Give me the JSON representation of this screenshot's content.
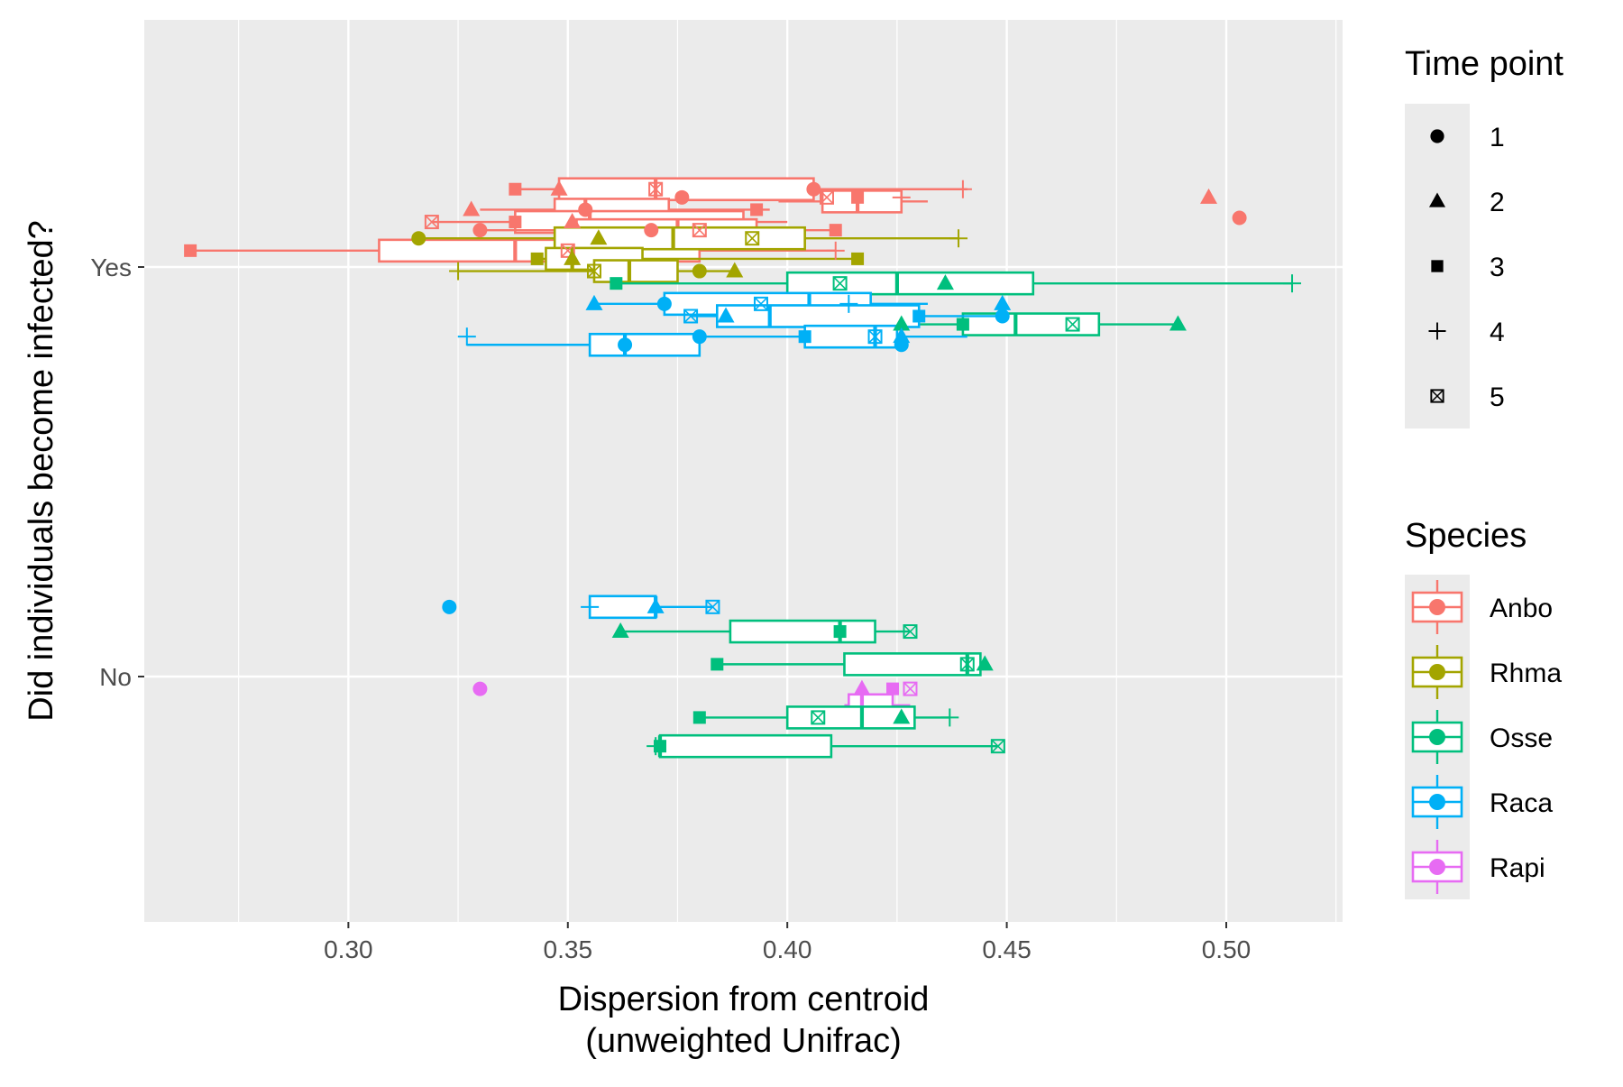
{
  "chart_data": {
    "type": "boxplot",
    "title": "",
    "xlabel": "Dispersion from centroid\n(unweighted Unifrac)",
    "ylabel": "Did individuals become infected?",
    "xlim": [
      0.2535,
      0.5265
    ],
    "x_ticks": [
      "0.30",
      "0.35",
      "0.40",
      "0.45",
      "0.50"
    ],
    "categories": [
      "No",
      "Yes"
    ],
    "grid": true,
    "legend": {
      "position": "right"
    },
    "legend_shape_title": "Time point",
    "legend_color_title": "Species",
    "time_points": [
      {
        "label": "1",
        "shape": "circle"
      },
      {
        "label": "2",
        "shape": "triangle"
      },
      {
        "label": "3",
        "shape": "square"
      },
      {
        "label": "4",
        "shape": "plus"
      },
      {
        "label": "5",
        "shape": "boxx"
      }
    ],
    "species": [
      {
        "label": "Anbo",
        "color": "#F8766D"
      },
      {
        "label": "Rhma",
        "color": "#A3A500"
      },
      {
        "label": "Osse",
        "color": "#00BF7D"
      },
      {
        "label": "Raca",
        "color": "#00B0F6"
      },
      {
        "label": "Rapi",
        "color": "#E76BF3"
      }
    ],
    "boxes": [
      {
        "species": "Anbo",
        "infected": "Yes",
        "offset": 0.19,
        "whisker_low": 0.337,
        "q1": 0.348,
        "median": 0.37,
        "q3": 0.406,
        "whisker_high": 0.441
      },
      {
        "species": "Anbo",
        "infected": "Yes",
        "offset": 0.16,
        "whisker_low": 0.398,
        "q1": 0.408,
        "median": 0.416,
        "q3": 0.426,
        "whisker_high": 0.432
      },
      {
        "species": "Anbo",
        "infected": "Yes",
        "offset": 0.14,
        "whisker_low": 0.33,
        "q1": 0.347,
        "median": 0.354,
        "q3": 0.373,
        "whisker_high": 0.396
      },
      {
        "species": "Anbo",
        "infected": "Yes",
        "offset": 0.11,
        "whisker_low": 0.319,
        "q1": 0.338,
        "median": 0.355,
        "q3": 0.39,
        "whisker_high": 0.4
      },
      {
        "species": "Anbo",
        "infected": "Yes",
        "offset": 0.09,
        "whisker_low": 0.33,
        "q1": 0.352,
        "median": 0.375,
        "q3": 0.393,
        "whisker_high": 0.411
      },
      {
        "species": "Anbo",
        "infected": "Yes",
        "offset": 0.04,
        "whisker_low": 0.264,
        "q1": 0.307,
        "median": 0.338,
        "q3": 0.38,
        "whisker_high": 0.411
      },
      {
        "species": "Rhma",
        "infected": "Yes",
        "offset": 0.07,
        "whisker_low": 0.316,
        "q1": 0.347,
        "median": 0.374,
        "q3": 0.404,
        "whisker_high": 0.439
      },
      {
        "species": "Rhma",
        "infected": "Yes",
        "offset": 0.02,
        "whisker_low": 0.343,
        "q1": 0.345,
        "median": 0.351,
        "q3": 0.367,
        "whisker_high": 0.416
      },
      {
        "species": "Rhma",
        "infected": "Yes",
        "offset": -0.01,
        "whisker_low": 0.325,
        "q1": 0.356,
        "median": 0.364,
        "q3": 0.375,
        "whisker_high": 0.388
      },
      {
        "species": "Osse",
        "infected": "Yes",
        "offset": -0.04,
        "whisker_low": 0.361,
        "q1": 0.4,
        "median": 0.425,
        "q3": 0.456,
        "whisker_high": 0.515
      },
      {
        "species": "Osse",
        "infected": "Yes",
        "offset": -0.14,
        "whisker_low": 0.426,
        "q1": 0.44,
        "median": 0.452,
        "q3": 0.471,
        "whisker_high": 0.489
      },
      {
        "species": "Raca",
        "infected": "Yes",
        "offset": -0.09,
        "whisker_low": 0.355,
        "q1": 0.372,
        "median": 0.405,
        "q3": 0.419,
        "whisker_high": 0.432
      },
      {
        "species": "Raca",
        "infected": "Yes",
        "offset": -0.12,
        "whisker_low": 0.378,
        "q1": 0.384,
        "median": 0.396,
        "q3": 0.43,
        "whisker_high": 0.449
      },
      {
        "species": "Raca",
        "infected": "Yes",
        "offset": -0.17,
        "whisker_low": 0.38,
        "q1": 0.404,
        "median": 0.42,
        "q3": 0.425,
        "whisker_high": 0.441
      },
      {
        "species": "Raca",
        "infected": "Yes",
        "offset": -0.19,
        "whisker_low": 0.327,
        "q1": 0.355,
        "median": 0.363,
        "q3": 0.38,
        "whisker_high": 0.38
      },
      {
        "species": "Raca",
        "infected": "No",
        "offset": 0.17,
        "whisker_low": 0.355,
        "q1": 0.355,
        "median": 0.37,
        "q3": 0.37,
        "whisker_high": 0.383
      },
      {
        "species": "Osse",
        "infected": "No",
        "offset": 0.11,
        "whisker_low": 0.362,
        "q1": 0.387,
        "median": 0.412,
        "q3": 0.42,
        "whisker_high": 0.428
      },
      {
        "species": "Osse",
        "infected": "No",
        "offset": 0.03,
        "whisker_low": 0.384,
        "q1": 0.413,
        "median": 0.441,
        "q3": 0.444,
        "whisker_high": 0.445
      },
      {
        "species": "Rapi",
        "infected": "No",
        "offset": -0.07,
        "whisker_low": 0.413,
        "q1": 0.414,
        "median": 0.417,
        "q3": 0.424,
        "whisker_high": 0.428
      },
      {
        "species": "Osse",
        "infected": "No",
        "offset": -0.1,
        "whisker_low": 0.38,
        "q1": 0.4,
        "median": 0.417,
        "q3": 0.429,
        "whisker_high": 0.437
      },
      {
        "species": "Osse",
        "infected": "No",
        "offset": -0.17,
        "whisker_low": 0.37,
        "q1": 0.371,
        "median": 0.371,
        "q3": 0.41,
        "whisker_high": 0.448
      }
    ],
    "outliers": [
      {
        "species": "Anbo",
        "infected": "Yes",
        "offset": 0.17,
        "x": 0.496,
        "time": "2"
      },
      {
        "species": "Anbo",
        "infected": "Yes",
        "offset": 0.12,
        "x": 0.503,
        "time": "1"
      },
      {
        "species": "Raca",
        "infected": "No",
        "offset": 0.17,
        "x": 0.323,
        "time": "1"
      },
      {
        "species": "Rapi",
        "infected": "No",
        "offset": -0.03,
        "x": 0.33,
        "time": "1"
      }
    ],
    "points": [
      {
        "species": "Anbo",
        "infected": "Yes",
        "offset": 0.19,
        "x": 0.338,
        "time": "3"
      },
      {
        "species": "Anbo",
        "infected": "Yes",
        "offset": 0.19,
        "x": 0.348,
        "time": "2"
      },
      {
        "species": "Anbo",
        "infected": "Yes",
        "offset": 0.19,
        "x": 0.37,
        "time": "5"
      },
      {
        "species": "Anbo",
        "infected": "Yes",
        "offset": 0.19,
        "x": 0.406,
        "time": "1"
      },
      {
        "species": "Anbo",
        "infected": "Yes",
        "offset": 0.19,
        "x": 0.44,
        "time": "4"
      },
      {
        "species": "Anbo",
        "infected": "Yes",
        "offset": 0.17,
        "x": 0.376,
        "time": "1"
      },
      {
        "species": "Anbo",
        "infected": "Yes",
        "offset": 0.17,
        "x": 0.409,
        "time": "5"
      },
      {
        "species": "Anbo",
        "infected": "Yes",
        "offset": 0.17,
        "x": 0.416,
        "time": "3"
      },
      {
        "species": "Anbo",
        "infected": "Yes",
        "offset": 0.17,
        "x": 0.426,
        "time": "4"
      },
      {
        "species": "Anbo",
        "infected": "Yes",
        "offset": 0.14,
        "x": 0.328,
        "time": "2"
      },
      {
        "species": "Anbo",
        "infected": "Yes",
        "offset": 0.14,
        "x": 0.354,
        "time": "1"
      },
      {
        "species": "Anbo",
        "infected": "Yes",
        "offset": 0.14,
        "x": 0.393,
        "time": "3"
      },
      {
        "species": "Anbo",
        "infected": "Yes",
        "offset": 0.11,
        "x": 0.319,
        "time": "5"
      },
      {
        "species": "Anbo",
        "infected": "Yes",
        "offset": 0.11,
        "x": 0.338,
        "time": "3"
      },
      {
        "species": "Anbo",
        "infected": "Yes",
        "offset": 0.11,
        "x": 0.351,
        "time": "2"
      },
      {
        "species": "Anbo",
        "infected": "Yes",
        "offset": 0.09,
        "x": 0.33,
        "time": "1"
      },
      {
        "species": "Anbo",
        "infected": "Yes",
        "offset": 0.09,
        "x": 0.369,
        "time": "1"
      },
      {
        "species": "Anbo",
        "infected": "Yes",
        "offset": 0.09,
        "x": 0.38,
        "time": "5"
      },
      {
        "species": "Anbo",
        "infected": "Yes",
        "offset": 0.09,
        "x": 0.411,
        "time": "3"
      },
      {
        "species": "Anbo",
        "infected": "Yes",
        "offset": 0.04,
        "x": 0.264,
        "time": "3"
      },
      {
        "species": "Anbo",
        "infected": "Yes",
        "offset": 0.04,
        "x": 0.35,
        "time": "5"
      },
      {
        "species": "Anbo",
        "infected": "Yes",
        "offset": 0.04,
        "x": 0.411,
        "time": "4"
      },
      {
        "species": "Rhma",
        "infected": "Yes",
        "offset": 0.07,
        "x": 0.316,
        "time": "1"
      },
      {
        "species": "Rhma",
        "infected": "Yes",
        "offset": 0.07,
        "x": 0.357,
        "time": "2"
      },
      {
        "species": "Rhma",
        "infected": "Yes",
        "offset": 0.07,
        "x": 0.392,
        "time": "5"
      },
      {
        "species": "Rhma",
        "infected": "Yes",
        "offset": 0.07,
        "x": 0.439,
        "time": "4"
      },
      {
        "species": "Rhma",
        "infected": "Yes",
        "offset": 0.02,
        "x": 0.343,
        "time": "3"
      },
      {
        "species": "Rhma",
        "infected": "Yes",
        "offset": 0.02,
        "x": 0.351,
        "time": "2"
      },
      {
        "species": "Rhma",
        "infected": "Yes",
        "offset": 0.02,
        "x": 0.416,
        "time": "3"
      },
      {
        "species": "Rhma",
        "infected": "Yes",
        "offset": -0.01,
        "x": 0.325,
        "time": "4"
      },
      {
        "species": "Rhma",
        "infected": "Yes",
        "offset": -0.01,
        "x": 0.356,
        "time": "5"
      },
      {
        "species": "Rhma",
        "infected": "Yes",
        "offset": -0.01,
        "x": 0.38,
        "time": "1"
      },
      {
        "species": "Rhma",
        "infected": "Yes",
        "offset": -0.01,
        "x": 0.388,
        "time": "2"
      },
      {
        "species": "Osse",
        "infected": "Yes",
        "offset": -0.04,
        "x": 0.361,
        "time": "3"
      },
      {
        "species": "Osse",
        "infected": "Yes",
        "offset": -0.04,
        "x": 0.412,
        "time": "5"
      },
      {
        "species": "Osse",
        "infected": "Yes",
        "offset": -0.04,
        "x": 0.436,
        "time": "2"
      },
      {
        "species": "Osse",
        "infected": "Yes",
        "offset": -0.04,
        "x": 0.515,
        "time": "4"
      },
      {
        "species": "Osse",
        "infected": "Yes",
        "offset": -0.14,
        "x": 0.426,
        "time": "2"
      },
      {
        "species": "Osse",
        "infected": "Yes",
        "offset": -0.14,
        "x": 0.44,
        "time": "3"
      },
      {
        "species": "Osse",
        "infected": "Yes",
        "offset": -0.14,
        "x": 0.465,
        "time": "5"
      },
      {
        "species": "Osse",
        "infected": "Yes",
        "offset": -0.14,
        "x": 0.489,
        "time": "2"
      },
      {
        "species": "Raca",
        "infected": "Yes",
        "offset": -0.09,
        "x": 0.356,
        "time": "2"
      },
      {
        "species": "Raca",
        "infected": "Yes",
        "offset": -0.09,
        "x": 0.372,
        "time": "1"
      },
      {
        "species": "Raca",
        "infected": "Yes",
        "offset": -0.09,
        "x": 0.394,
        "time": "5"
      },
      {
        "species": "Raca",
        "infected": "Yes",
        "offset": -0.09,
        "x": 0.414,
        "time": "4"
      },
      {
        "species": "Raca",
        "infected": "Yes",
        "offset": -0.09,
        "x": 0.449,
        "time": "2"
      },
      {
        "species": "Raca",
        "infected": "Yes",
        "offset": -0.12,
        "x": 0.378,
        "time": "5"
      },
      {
        "species": "Raca",
        "infected": "Yes",
        "offset": -0.12,
        "x": 0.386,
        "time": "2"
      },
      {
        "species": "Raca",
        "infected": "Yes",
        "offset": -0.12,
        "x": 0.43,
        "time": "3"
      },
      {
        "species": "Raca",
        "infected": "Yes",
        "offset": -0.12,
        "x": 0.449,
        "time": "1"
      },
      {
        "species": "Raca",
        "infected": "Yes",
        "offset": -0.17,
        "x": 0.327,
        "time": "4"
      },
      {
        "species": "Raca",
        "infected": "Yes",
        "offset": -0.17,
        "x": 0.38,
        "time": "1"
      },
      {
        "species": "Raca",
        "infected": "Yes",
        "offset": -0.17,
        "x": 0.404,
        "time": "3"
      },
      {
        "species": "Raca",
        "infected": "Yes",
        "offset": -0.17,
        "x": 0.42,
        "time": "5"
      },
      {
        "species": "Raca",
        "infected": "Yes",
        "offset": -0.17,
        "x": 0.426,
        "time": "2"
      },
      {
        "species": "Raca",
        "infected": "Yes",
        "offset": -0.19,
        "x": 0.363,
        "time": "1"
      },
      {
        "species": "Raca",
        "infected": "Yes",
        "offset": -0.19,
        "x": 0.426,
        "time": "1"
      },
      {
        "species": "Raca",
        "infected": "No",
        "offset": 0.17,
        "x": 0.355,
        "time": "4"
      },
      {
        "species": "Raca",
        "infected": "No",
        "offset": 0.17,
        "x": 0.37,
        "time": "2"
      },
      {
        "species": "Raca",
        "infected": "No",
        "offset": 0.17,
        "x": 0.383,
        "time": "5"
      },
      {
        "species": "Osse",
        "infected": "No",
        "offset": 0.11,
        "x": 0.362,
        "time": "2"
      },
      {
        "species": "Osse",
        "infected": "No",
        "offset": 0.11,
        "x": 0.412,
        "time": "3"
      },
      {
        "species": "Osse",
        "infected": "No",
        "offset": 0.11,
        "x": 0.428,
        "time": "5"
      },
      {
        "species": "Osse",
        "infected": "No",
        "offset": 0.03,
        "x": 0.384,
        "time": "3"
      },
      {
        "species": "Osse",
        "infected": "No",
        "offset": 0.03,
        "x": 0.441,
        "time": "5"
      },
      {
        "species": "Osse",
        "infected": "No",
        "offset": 0.03,
        "x": 0.445,
        "time": "2"
      },
      {
        "species": "Rapi",
        "infected": "No",
        "offset": -0.03,
        "x": 0.417,
        "time": "2"
      },
      {
        "species": "Rapi",
        "infected": "No",
        "offset": -0.03,
        "x": 0.424,
        "time": "3"
      },
      {
        "species": "Rapi",
        "infected": "No",
        "offset": -0.03,
        "x": 0.428,
        "time": "5"
      },
      {
        "species": "Osse",
        "infected": "No",
        "offset": -0.1,
        "x": 0.38,
        "time": "3"
      },
      {
        "species": "Osse",
        "infected": "No",
        "offset": -0.1,
        "x": 0.407,
        "time": "5"
      },
      {
        "species": "Osse",
        "infected": "No",
        "offset": -0.1,
        "x": 0.426,
        "time": "2"
      },
      {
        "species": "Osse",
        "infected": "No",
        "offset": -0.1,
        "x": 0.437,
        "time": "4"
      },
      {
        "species": "Osse",
        "infected": "No",
        "offset": -0.17,
        "x": 0.37,
        "time": "4"
      },
      {
        "species": "Osse",
        "infected": "No",
        "offset": -0.17,
        "x": 0.371,
        "time": "3"
      },
      {
        "species": "Osse",
        "infected": "No",
        "offset": -0.17,
        "x": 0.448,
        "time": "5"
      }
    ]
  }
}
